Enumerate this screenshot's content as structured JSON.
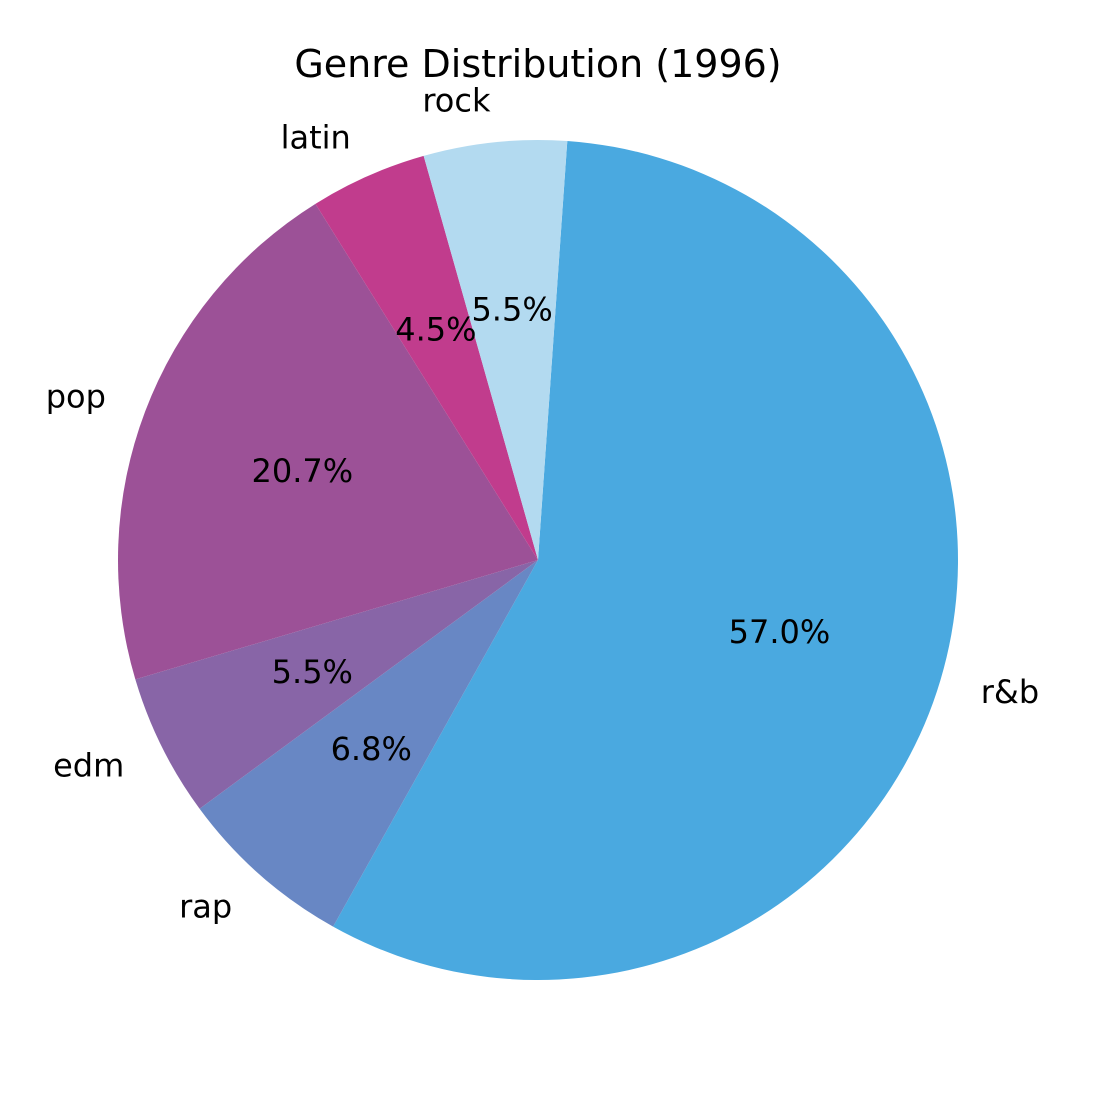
{
  "chart_data": {
    "type": "pie",
    "title": "Genre Distribution (1996)",
    "start_angle_deg": 86,
    "direction": "clockwise",
    "slices": [
      {
        "label": "r&b",
        "value": 57.0,
        "pct_label": "57.0%",
        "color": "#4aa9e0"
      },
      {
        "label": "rap",
        "value": 6.8,
        "pct_label": "6.8%",
        "color": "#6887c4"
      },
      {
        "label": "edm",
        "value": 5.5,
        "pct_label": "5.5%",
        "color": "#8865a7"
      },
      {
        "label": "pop",
        "value": 20.7,
        "pct_label": "20.7%",
        "color": "#9c5197"
      },
      {
        "label": "latin",
        "value": 4.5,
        "pct_label": "4.5%",
        "color": "#c13c8d"
      },
      {
        "label": "rock",
        "value": 5.5,
        "pct_label": "5.5%",
        "color": "#b3daf0"
      }
    ]
  }
}
